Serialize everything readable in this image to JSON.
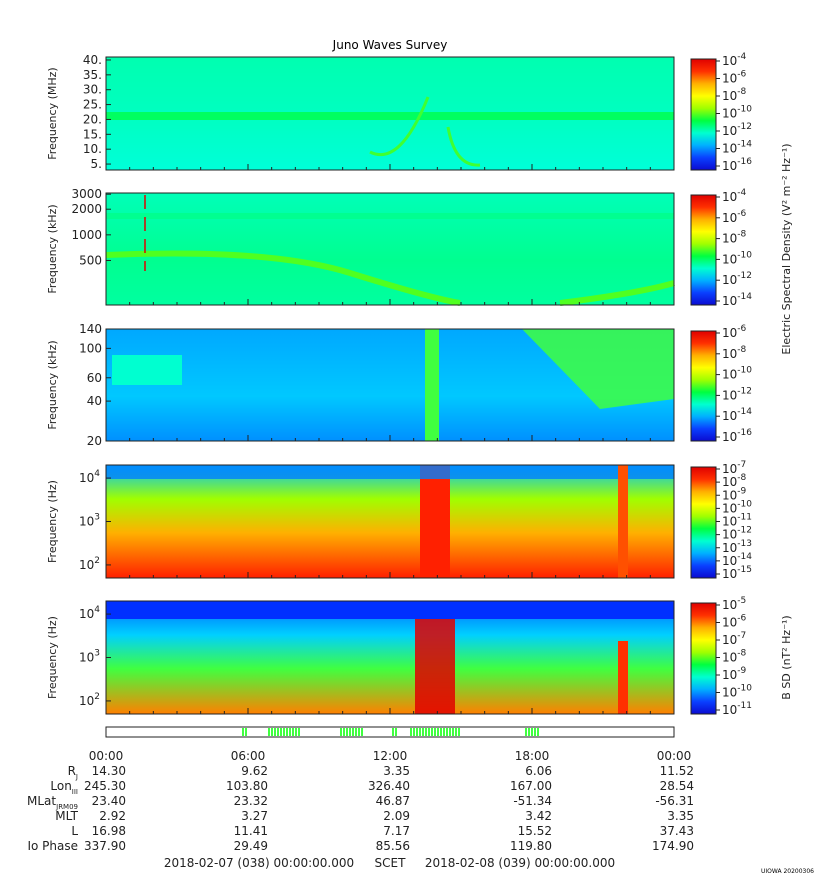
{
  "title": "Juno Waves Survey",
  "footer": {
    "start": "2018-02-07 (038) 00:00:00.000",
    "scet": "SCET",
    "end": "2018-02-08 (039) 00:00:00.000",
    "credit": "UIOWA 20200306"
  },
  "colors": {
    "scale": [
      "#0b0bd0",
      "#0a40ff",
      "#00b0ff",
      "#00ffd0",
      "#00ff40",
      "#a0ff00",
      "#ffff00",
      "#ffb000",
      "#ff3000",
      "#e00000"
    ]
  },
  "chart_data": [
    {
      "type": "heatmap",
      "panel": "HFR high",
      "ylabel": "Frequency (MHz)",
      "yticks": [
        "40.",
        "35.",
        "30.",
        "25.",
        "20.",
        "15.",
        "10.",
        "5."
      ],
      "ytick_values": [
        40,
        35,
        30,
        25,
        20,
        15,
        10,
        5
      ],
      "ylim": [
        3,
        41
      ],
      "log": false,
      "colorbar_ticks": [
        "-4",
        "-6",
        "-8",
        "-10",
        "-12",
        "-14",
        "-16"
      ],
      "colorbar_label": ""
    },
    {
      "type": "heatmap",
      "panel": "HFR low",
      "ylabel": "Frequency (kHz)",
      "yticks": [
        "3000",
        "2000",
        "1000",
        "500"
      ],
      "ytick_values": [
        3000,
        2000,
        1000,
        500
      ],
      "ylim": [
        150,
        3100
      ],
      "log": true,
      "colorbar_ticks": [
        "-4",
        "-6",
        "-8",
        "-10",
        "-12",
        "-14"
      ],
      "colorbar_label": "Electric Spectral Density (V² m⁻² Hz⁻¹)"
    },
    {
      "type": "heatmap",
      "panel": "LFR high",
      "ylabel": "Frequency (kHz)",
      "yticks": [
        "140",
        "100",
        "60",
        "40",
        "20"
      ],
      "ytick_values": [
        140,
        100,
        60,
        40,
        20
      ],
      "ylim": [
        20,
        140
      ],
      "log": true,
      "colorbar_ticks": [
        "-6",
        "-8",
        "-10",
        "-12",
        "-14",
        "-16"
      ],
      "colorbar_label": ""
    },
    {
      "type": "heatmap",
      "panel": "LFR low E",
      "ylabel": "Frequency (Hz)",
      "yticks": [
        "4",
        "3",
        "2"
      ],
      "ytick_values": [
        10000,
        1000,
        100
      ],
      "ylim": [
        50,
        20000
      ],
      "log": true,
      "colorbar_ticks": [
        "-7",
        "-8",
        "-9",
        "-10",
        "-11",
        "-12",
        "-13",
        "-14",
        "-15"
      ],
      "colorbar_label": ""
    },
    {
      "type": "heatmap",
      "panel": "LFR low B",
      "ylabel": "Frequency (Hz)",
      "yticks": [
        "4",
        "3",
        "2"
      ],
      "ytick_values": [
        10000,
        1000,
        100
      ],
      "ylim": [
        50,
        20000
      ],
      "log": true,
      "colorbar_ticks": [
        "-5",
        "-6",
        "-7",
        "-8",
        "-9",
        "-10",
        "-11"
      ],
      "colorbar_label": "B SD (nT² Hz⁻¹)"
    }
  ],
  "time_ticks": [
    "00:00",
    "06:00",
    "12:00",
    "18:00",
    "00:00"
  ],
  "ephemeris": [
    {
      "label": "R",
      "sub": "J",
      "values": [
        "14.30",
        "9.62",
        "3.35",
        "6.06",
        "11.52"
      ]
    },
    {
      "label": "Lon",
      "sub": "III",
      "values": [
        "245.30",
        "103.80",
        "326.40",
        "167.00",
        "28.54"
      ]
    },
    {
      "label": "MLat",
      "sub": "JRM09",
      "values": [
        "23.40",
        "23.32",
        "46.87",
        "-51.34",
        "-56.31"
      ]
    },
    {
      "label": "MLT",
      "sub": "",
      "values": [
        "2.92",
        "3.27",
        "2.09",
        "3.42",
        "3.35"
      ]
    },
    {
      "label": "L",
      "sub": "",
      "values": [
        "16.98",
        "11.41",
        "7.17",
        "15.52",
        "37.43"
      ]
    },
    {
      "label": "Io Phase",
      "sub": "",
      "values": [
        "337.90",
        "29.49",
        "85.56",
        "119.80",
        "174.90"
      ]
    }
  ]
}
